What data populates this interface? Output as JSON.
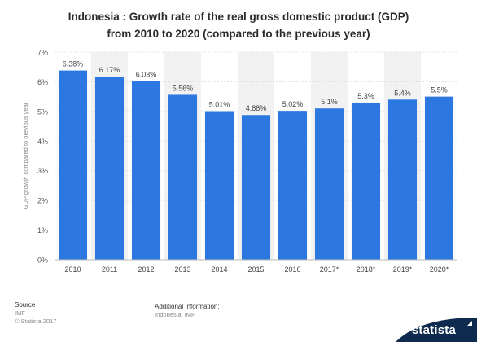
{
  "title_lines": [
    "Indonesia : Growth rate of the real gross domestic product (GDP)",
    "from 2010 to 2020 (compared to the previous year)"
  ],
  "footer": {
    "source_header": "Source",
    "source_value": "IMF",
    "copyright": "© Statista 2017",
    "additional_header": "Additional Information:",
    "additional_value": "Indonesia; IMF",
    "brand": "statista"
  },
  "colors": {
    "bar": "#2c77e0",
    "band": "#f2f2f2",
    "brand_bg": "#0e2a4f"
  },
  "chart_data": {
    "type": "bar",
    "categories": [
      "2010",
      "2011",
      "2012",
      "2013",
      "2014",
      "2015",
      "2016",
      "2017*",
      "2018*",
      "2019*",
      "2020*"
    ],
    "values": [
      6.38,
      6.17,
      6.03,
      5.56,
      5.01,
      4.88,
      5.02,
      5.1,
      5.3,
      5.4,
      5.5
    ],
    "value_labels": [
      "6.38%",
      "6.17%",
      "6.03%",
      "5.56%",
      "5.01%",
      "4.88%",
      "5.02%",
      "5.1%",
      "5.3%",
      "5.4%",
      "5.5%"
    ],
    "ylabel": "GDP growth compared to previous year",
    "xlabel": "",
    "ylim": [
      0,
      7
    ],
    "yticks": [
      0,
      1,
      2,
      3,
      4,
      5,
      6,
      7
    ],
    "ytick_labels": [
      "0%",
      "1%",
      "2%",
      "3%",
      "4%",
      "5%",
      "6%",
      "7%"
    ],
    "grid": true,
    "alternating_bands": true
  }
}
